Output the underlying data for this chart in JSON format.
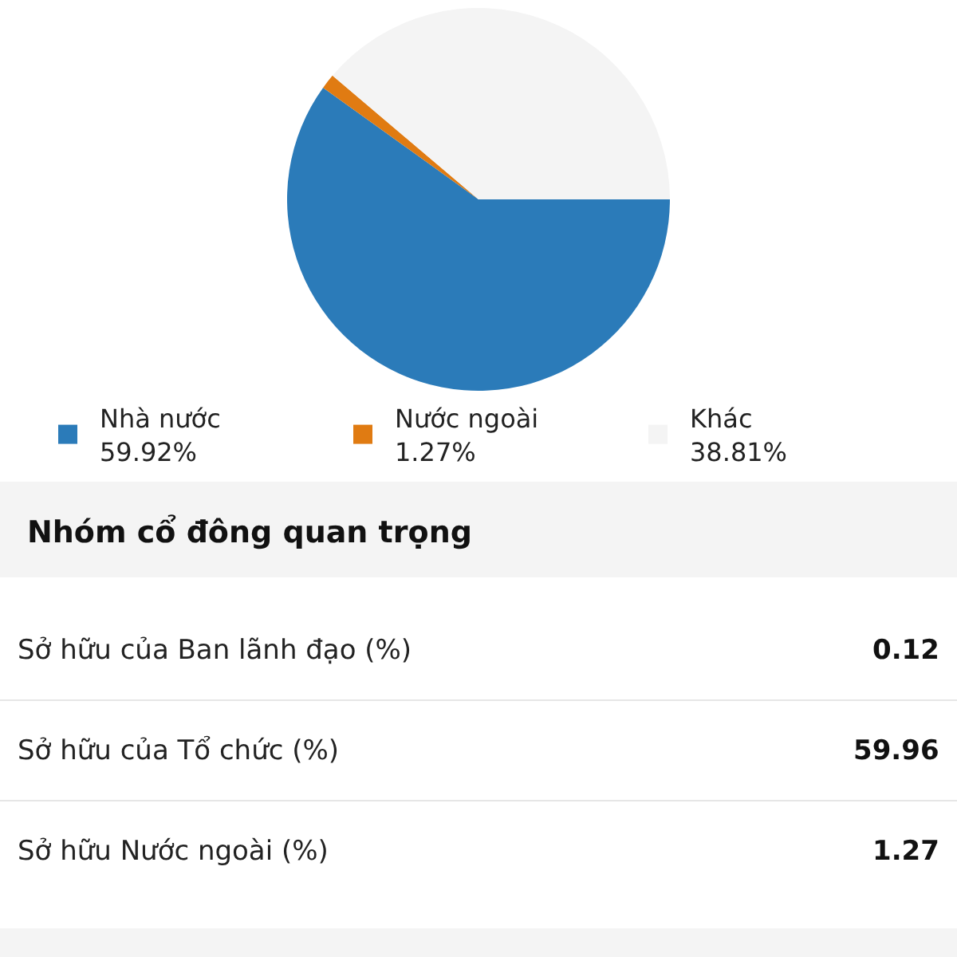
{
  "chart_data": {
    "type": "pie",
    "categories": [
      "Nhà nước",
      "Nước ngoài",
      "Khác"
    ],
    "values": [
      59.92,
      1.27,
      38.81
    ],
    "value_labels": [
      "59.92%",
      "1.27%",
      "38.81%"
    ],
    "colors": [
      "#2b7bb9",
      "#e07b12",
      "#f4f4f4"
    ],
    "legend": "bottom",
    "annotations": [
      "Nhóm cổ đông quan trọng",
      "Sở hữu của Ban lãnh đạo (%)",
      "0.12",
      "Sở hữu của Tổ chức (%)",
      "59.96",
      "Sở hữu Nước ngoài (%)",
      "1.27"
    ]
  }
}
